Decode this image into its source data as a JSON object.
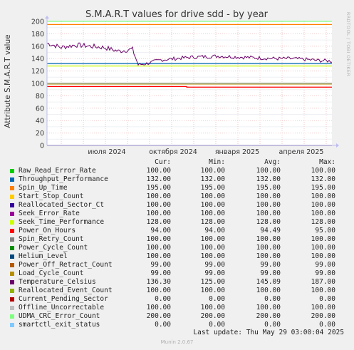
{
  "chart_data": {
    "type": "line",
    "title": "S.M.A.R.T values for drive sdd - by year",
    "ylabel": "Attribute S.M.A.R.T value",
    "ylim": [
      0,
      200
    ],
    "y_ticks": [
      0,
      20,
      40,
      60,
      80,
      100,
      120,
      140,
      160,
      180,
      200
    ],
    "x_tick_labels": [
      "июля 2024",
      "октября 2024",
      "января 2025",
      "апреля 2025"
    ],
    "grid": true,
    "series": [
      {
        "name": "Raw_Read_Error_Rate",
        "color": "#00cc00",
        "values": [
          100,
          100
        ]
      },
      {
        "name": "Throughput_Performance",
        "color": "#0066b3",
        "values": [
          132,
          132
        ]
      },
      {
        "name": "Spin_Up_Time",
        "color": "#ff8000",
        "values": [
          195,
          195
        ]
      },
      {
        "name": "Start_Stop_Count",
        "color": "#ffcc00",
        "values": [
          100,
          100
        ]
      },
      {
        "name": "Reallocated_Sector_Ct",
        "color": "#330099",
        "values": [
          100,
          100
        ]
      },
      {
        "name": "Seek_Error_Rate",
        "color": "#990099",
        "values": [
          100,
          100
        ]
      },
      {
        "name": "Seek_Time_Performance",
        "color": "#ccff00",
        "values": [
          128,
          128
        ]
      },
      {
        "name": "Power_On_Hours",
        "color": "#ff0000",
        "values": [
          95,
          94
        ]
      },
      {
        "name": "Spin_Retry_Count",
        "color": "#808080",
        "values": [
          100,
          100
        ]
      },
      {
        "name": "Power_Cycle_Count",
        "color": "#008f00",
        "values": [
          100,
          100
        ]
      },
      {
        "name": "Helium_Level",
        "color": "#00487d",
        "values": [
          100,
          100
        ]
      },
      {
        "name": "Power_Off_Retract_Count",
        "color": "#b35a00",
        "values": [
          99,
          99
        ]
      },
      {
        "name": "Load_Cycle_Count",
        "color": "#b38f00",
        "values": [
          99,
          99
        ]
      },
      {
        "name": "Temperature_Celsius",
        "color": "#6b006b",
        "values": []
      },
      {
        "name": "Reallocated_Event_Count",
        "color": "#8fb300",
        "values": [
          100,
          100
        ]
      },
      {
        "name": "Current_Pending_Sector",
        "color": "#b30000",
        "values": [
          0,
          0
        ]
      },
      {
        "name": "Offline_Uncorrectable",
        "color": "#bebebe",
        "values": [
          100,
          100
        ]
      },
      {
        "name": "UDMA_CRC_Error_Count",
        "color": "#80ff80",
        "values": [
          200,
          200
        ]
      },
      {
        "name": "smartctl_exit_status",
        "color": "#80c9ff",
        "values": [
          0,
          0
        ]
      }
    ],
    "temperature_profile": {
      "x": [
        0,
        0.05,
        0.1,
        0.15,
        0.2,
        0.25,
        0.3,
        0.32,
        0.35,
        0.4,
        0.45,
        0.5,
        0.55,
        0.6,
        0.65,
        0.7,
        0.75,
        0.8,
        0.85,
        0.9,
        0.95,
        1.0
      ],
      "y": [
        165,
        158,
        162,
        160,
        158,
        152,
        155,
        130,
        132,
        138,
        140,
        142,
        143,
        144,
        143,
        142,
        141,
        140,
        140,
        139,
        137,
        136
      ]
    }
  },
  "side_text": "RRDTOOL / TOBI OETIKER",
  "legend": {
    "headers": {
      "cur": "Cur:",
      "min": "Min:",
      "avg": "Avg:",
      "max": "Max:"
    },
    "rows": [
      {
        "name": "Raw_Read_Error_Rate",
        "color": "#00cc00",
        "cur": "100.00",
        "min": "100.00",
        "avg": "100.00",
        "max": "100.00"
      },
      {
        "name": "Throughput_Performance",
        "color": "#0066b3",
        "cur": "132.00",
        "min": "132.00",
        "avg": "132.00",
        "max": "132.00"
      },
      {
        "name": "Spin_Up_Time",
        "color": "#ff8000",
        "cur": "195.00",
        "min": "195.00",
        "avg": "195.00",
        "max": "195.00"
      },
      {
        "name": "Start_Stop_Count",
        "color": "#ffcc00",
        "cur": "100.00",
        "min": "100.00",
        "avg": "100.00",
        "max": "100.00"
      },
      {
        "name": "Reallocated_Sector_Ct",
        "color": "#330099",
        "cur": "100.00",
        "min": "100.00",
        "avg": "100.00",
        "max": "100.00"
      },
      {
        "name": "Seek_Error_Rate",
        "color": "#990099",
        "cur": "100.00",
        "min": "100.00",
        "avg": "100.00",
        "max": "100.00"
      },
      {
        "name": "Seek_Time_Performance",
        "color": "#ccff00",
        "cur": "128.00",
        "min": "128.00",
        "avg": "128.00",
        "max": "128.00"
      },
      {
        "name": "Power_On_Hours",
        "color": "#ff0000",
        "cur": "94.00",
        "min": "94.00",
        "avg": "94.49",
        "max": "95.00"
      },
      {
        "name": "Spin_Retry_Count",
        "color": "#808080",
        "cur": "100.00",
        "min": "100.00",
        "avg": "100.00",
        "max": "100.00"
      },
      {
        "name": "Power_Cycle_Count",
        "color": "#008f00",
        "cur": "100.00",
        "min": "100.00",
        "avg": "100.00",
        "max": "100.00"
      },
      {
        "name": "Helium_Level",
        "color": "#00487d",
        "cur": "100.00",
        "min": "100.00",
        "avg": "100.00",
        "max": "100.00"
      },
      {
        "name": "Power_Off_Retract_Count",
        "color": "#b35a00",
        "cur": "99.00",
        "min": "99.00",
        "avg": "99.00",
        "max": "99.00"
      },
      {
        "name": "Load_Cycle_Count",
        "color": "#b38f00",
        "cur": "99.00",
        "min": "99.00",
        "avg": "99.00",
        "max": "99.00"
      },
      {
        "name": "Temperature_Celsius",
        "color": "#6b006b",
        "cur": "136.30",
        "min": "125.00",
        "avg": "145.09",
        "max": "187.00"
      },
      {
        "name": "Reallocated_Event_Count",
        "color": "#8fb300",
        "cur": "100.00",
        "min": "100.00",
        "avg": "100.00",
        "max": "100.00"
      },
      {
        "name": "Current_Pending_Sector",
        "color": "#b30000",
        "cur": "0.00",
        "min": "0.00",
        "avg": "0.00",
        "max": "0.00"
      },
      {
        "name": "Offline_Uncorrectable",
        "color": "#bebebe",
        "cur": "100.00",
        "min": "100.00",
        "avg": "100.00",
        "max": "100.00"
      },
      {
        "name": "UDMA_CRC_Error_Count",
        "color": "#80ff80",
        "cur": "200.00",
        "min": "200.00",
        "avg": "200.00",
        "max": "200.00"
      },
      {
        "name": "smartctl_exit_status",
        "color": "#80c9ff",
        "cur": "0.00",
        "min": "0.00",
        "avg": "0.00",
        "max": "0.00"
      }
    ]
  },
  "last_update": "Last update: Thu May 29 03:00:04 2025",
  "footer": "Munin 2.0.67"
}
